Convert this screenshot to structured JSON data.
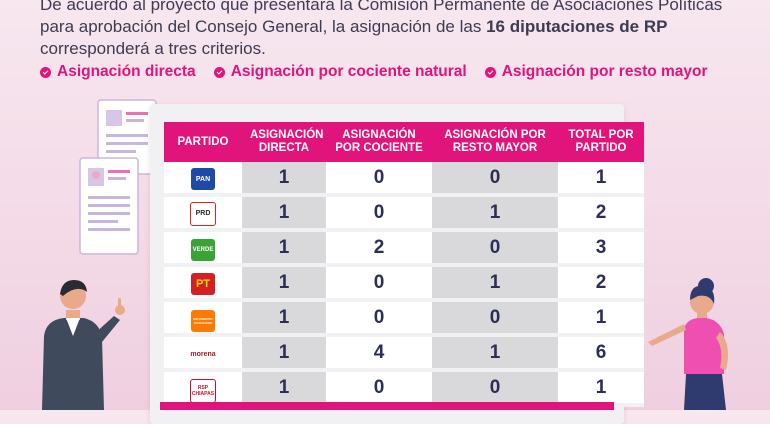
{
  "intro": {
    "line1": "De acuerdo al proyecto que presentará la Comisión Permanente de Asociaciones Políticas",
    "line2": "para aprobación del Consejo General, la asignación de las ",
    "line2_bold": "16 diputaciones de RP",
    "line3": "corresponderá a tres criterios."
  },
  "criteria": [
    "Asignación directa",
    "Asignación por cociente natural",
    "Asignación por resto mayor"
  ],
  "table": {
    "headers": [
      "PARTIDO",
      "ASIGNACIÓN DIRECTA",
      "ASIGNACIÓN POR COCIENTE",
      "ASIGNACIÓN POR RESTO MAYOR",
      "TOTAL POR PARTIDO"
    ],
    "rows": [
      {
        "party": "PAN",
        "directa": "1",
        "cociente": "0",
        "resto": "0",
        "total": "1"
      },
      {
        "party": "PRD",
        "directa": "1",
        "cociente": "0",
        "resto": "1",
        "total": "2"
      },
      {
        "party": "VERDE",
        "directa": "1",
        "cociente": "2",
        "resto": "0",
        "total": "3"
      },
      {
        "party": "PT",
        "directa": "1",
        "cociente": "0",
        "resto": "1",
        "total": "2"
      },
      {
        "party": "MOVIMIENTO CIUDADANO",
        "directa": "1",
        "cociente": "0",
        "resto": "0",
        "total": "1"
      },
      {
        "party": "morena",
        "directa": "1",
        "cociente": "4",
        "resto": "1",
        "total": "6"
      },
      {
        "party": "RSP CHIAPAS",
        "directa": "1",
        "cociente": "0",
        "resto": "0",
        "total": "1"
      }
    ]
  },
  "colors": {
    "accent": "#e0147a",
    "text": "#2c2f55",
    "background": "#f3d9e6"
  }
}
